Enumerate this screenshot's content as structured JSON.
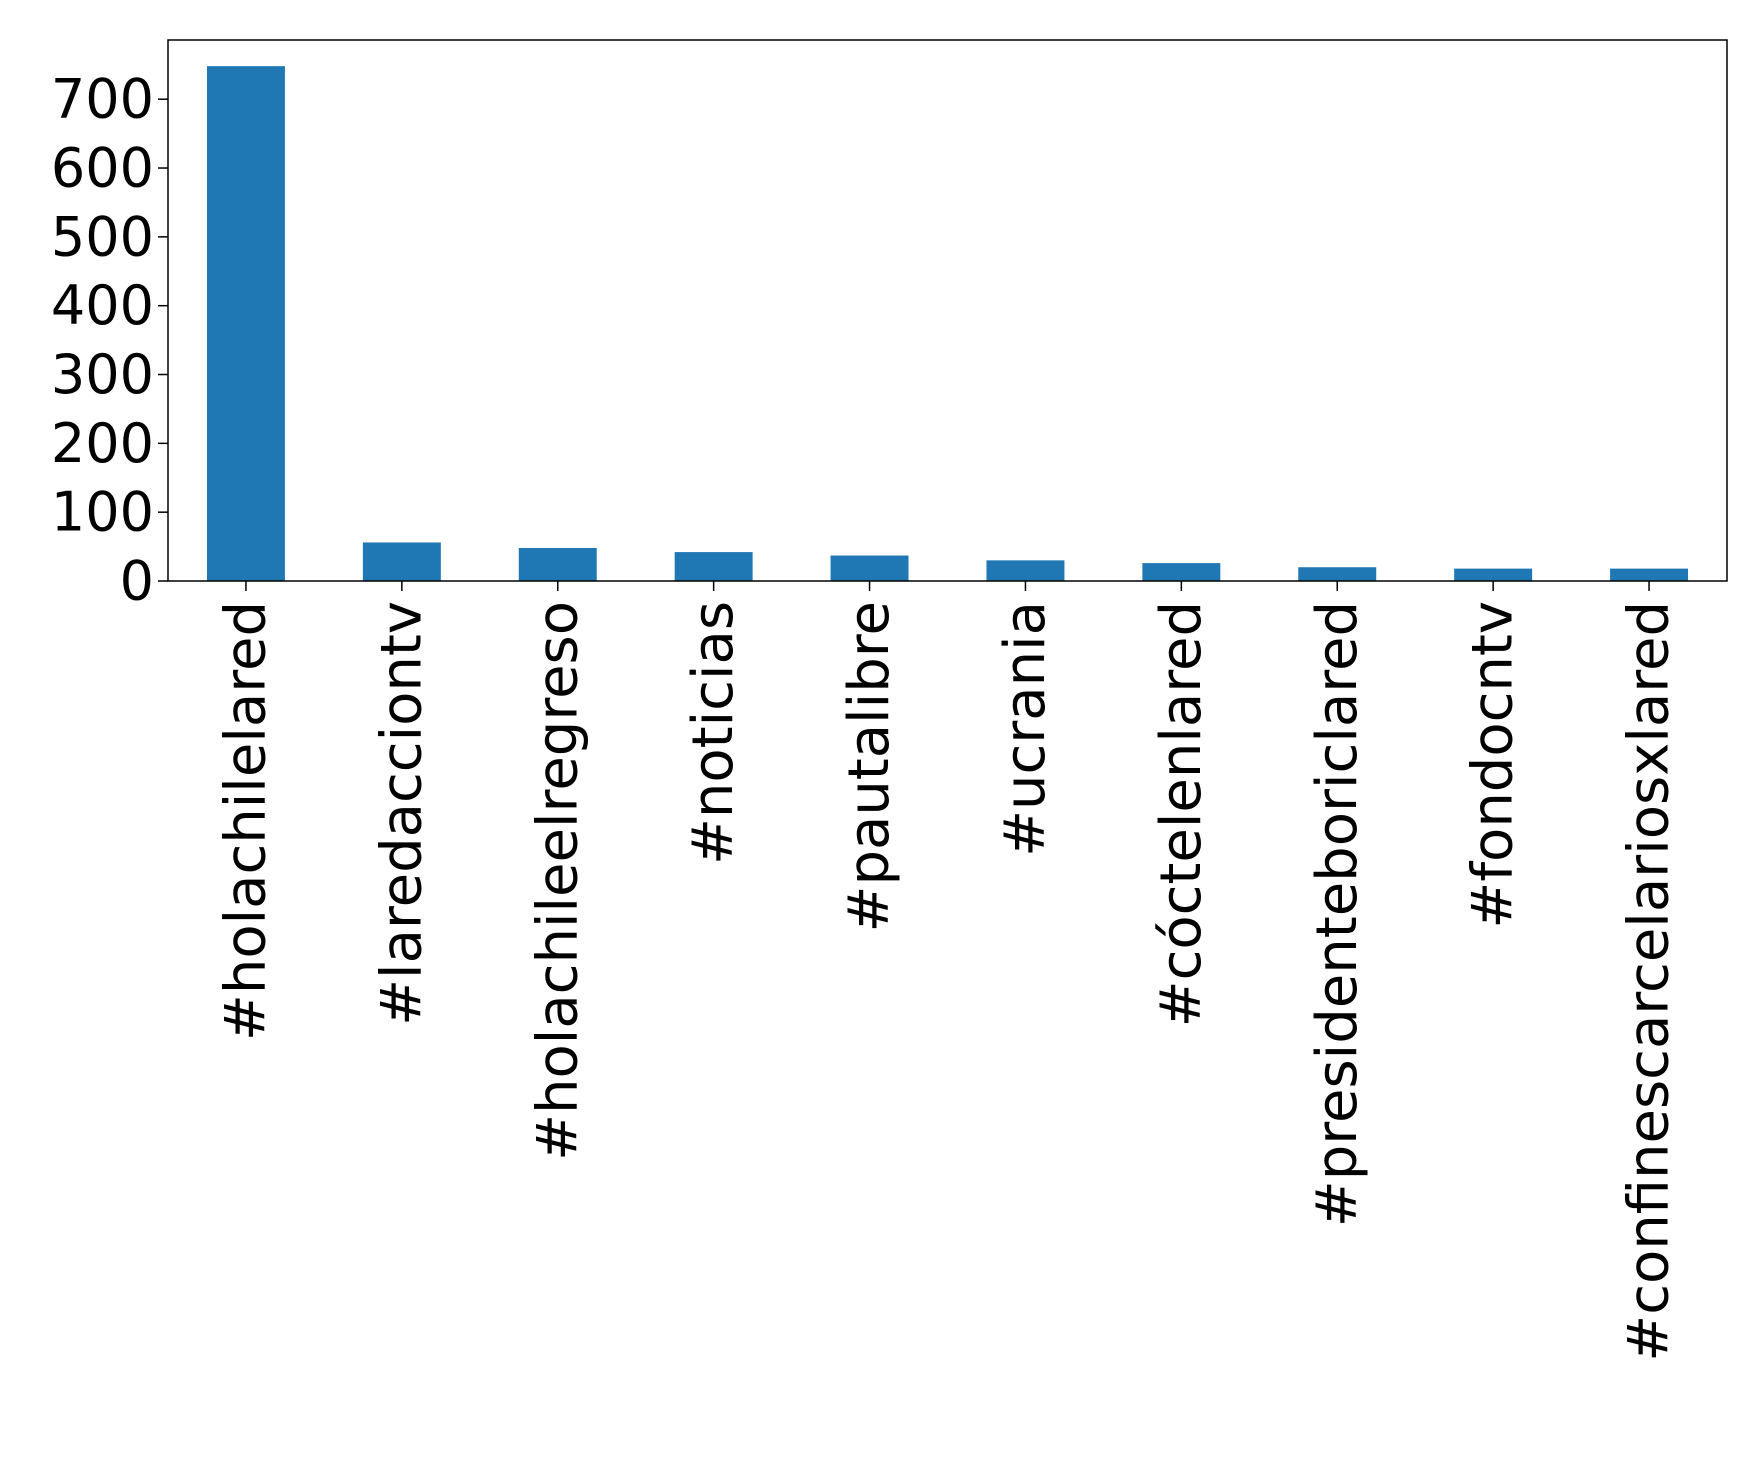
{
  "chart_data": {
    "type": "bar",
    "title": "",
    "xlabel": "",
    "ylabel": "",
    "categories": [
      "#holachilelared",
      "#laredacciontv",
      "#holachileelregreso",
      "#noticias",
      "#pautalibre",
      "#ucrania",
      "#cóctelenlared",
      "#presidenteboriclared",
      "#fondocntv",
      "#confinescarcelariosxlared"
    ],
    "values": [
      748,
      56,
      48,
      42,
      37,
      30,
      26,
      20,
      18,
      18
    ],
    "yticks": [
      "0",
      "100",
      "200",
      "300",
      "400",
      "500",
      "600",
      "700"
    ],
    "ylim": [
      0,
      786
    ],
    "grid": false,
    "legend": "none",
    "bar_color": "#1f77b4"
  }
}
